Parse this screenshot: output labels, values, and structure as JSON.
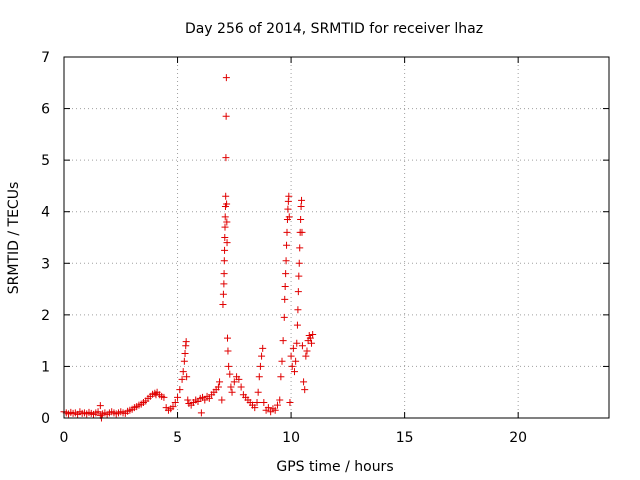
{
  "chart_data": {
    "type": "scatter",
    "title": "Day 256 of 2014, SRMTID for receiver lhaz",
    "xlabel": "GPS time / hours",
    "ylabel": "SRMTID / TECUs",
    "xlim": [
      0,
      24
    ],
    "ylim": [
      0,
      7
    ],
    "xticks": [
      0,
      5,
      10,
      15,
      20
    ],
    "yticks": [
      0,
      1,
      2,
      3,
      4,
      5,
      6,
      7
    ],
    "grid": true,
    "legend": "none",
    "marker": "+",
    "color": "#e00000",
    "series": [
      {
        "name": "SRMTID",
        "points": [
          [
            0.0,
            0.12
          ],
          [
            0.1,
            0.1
          ],
          [
            0.2,
            0.08
          ],
          [
            0.3,
            0.11
          ],
          [
            0.4,
            0.09
          ],
          [
            0.5,
            0.1
          ],
          [
            0.6,
            0.07
          ],
          [
            0.7,
            0.12
          ],
          [
            0.8,
            0.09
          ],
          [
            0.9,
            0.1
          ],
          [
            1.0,
            0.08
          ],
          [
            1.1,
            0.11
          ],
          [
            1.2,
            0.09
          ],
          [
            1.3,
            0.07
          ],
          [
            1.4,
            0.1
          ],
          [
            1.5,
            0.12
          ],
          [
            1.6,
            0.24
          ],
          [
            1.6,
            0.05
          ],
          [
            1.65,
            0.0
          ],
          [
            1.7,
            0.08
          ],
          [
            1.8,
            0.1
          ],
          [
            1.9,
            0.07
          ],
          [
            2.0,
            0.1
          ],
          [
            2.1,
            0.12
          ],
          [
            2.2,
            0.1
          ],
          [
            2.3,
            0.08
          ],
          [
            2.4,
            0.1
          ],
          [
            2.5,
            0.12
          ],
          [
            2.6,
            0.1
          ],
          [
            2.7,
            0.09
          ],
          [
            2.8,
            0.13
          ],
          [
            2.9,
            0.15
          ],
          [
            3.0,
            0.17
          ],
          [
            3.1,
            0.2
          ],
          [
            3.2,
            0.22
          ],
          [
            3.3,
            0.25
          ],
          [
            3.4,
            0.27
          ],
          [
            3.5,
            0.3
          ],
          [
            3.6,
            0.33
          ],
          [
            3.7,
            0.38
          ],
          [
            3.8,
            0.42
          ],
          [
            3.9,
            0.46
          ],
          [
            4.0,
            0.48
          ],
          [
            4.05,
            0.45
          ],
          [
            4.1,
            0.5
          ],
          [
            4.2,
            0.45
          ],
          [
            4.3,
            0.42
          ],
          [
            4.4,
            0.4
          ],
          [
            4.5,
            0.2
          ],
          [
            4.6,
            0.15
          ],
          [
            4.7,
            0.18
          ],
          [
            4.8,
            0.22
          ],
          [
            4.9,
            0.3
          ],
          [
            5.0,
            0.4
          ],
          [
            5.1,
            0.55
          ],
          [
            5.2,
            0.75
          ],
          [
            5.25,
            0.9
          ],
          [
            5.3,
            1.1
          ],
          [
            5.33,
            1.25
          ],
          [
            5.36,
            1.4
          ],
          [
            5.38,
            1.48
          ],
          [
            5.4,
            0.8
          ],
          [
            5.45,
            0.35
          ],
          [
            5.5,
            0.28
          ],
          [
            5.6,
            0.25
          ],
          [
            5.7,
            0.3
          ],
          [
            5.8,
            0.35
          ],
          [
            5.9,
            0.32
          ],
          [
            6.0,
            0.38
          ],
          [
            6.05,
            0.1
          ],
          [
            6.1,
            0.4
          ],
          [
            6.2,
            0.35
          ],
          [
            6.3,
            0.42
          ],
          [
            6.4,
            0.38
          ],
          [
            6.5,
            0.45
          ],
          [
            6.6,
            0.5
          ],
          [
            6.7,
            0.55
          ],
          [
            6.8,
            0.6
          ],
          [
            6.85,
            0.7
          ],
          [
            6.95,
            0.35
          ],
          [
            7.0,
            2.2
          ],
          [
            7.02,
            2.4
          ],
          [
            7.04,
            2.6
          ],
          [
            7.05,
            2.8
          ],
          [
            7.06,
            3.05
          ],
          [
            7.07,
            3.25
          ],
          [
            7.08,
            3.5
          ],
          [
            7.09,
            3.7
          ],
          [
            7.1,
            3.9
          ],
          [
            7.11,
            4.1
          ],
          [
            7.12,
            4.3
          ],
          [
            7.13,
            5.05
          ],
          [
            7.14,
            5.85
          ],
          [
            7.15,
            6.6
          ],
          [
            7.16,
            4.15
          ],
          [
            7.17,
            3.8
          ],
          [
            7.18,
            3.4
          ],
          [
            7.2,
            1.55
          ],
          [
            7.22,
            1.3
          ],
          [
            7.25,
            1.0
          ],
          [
            7.3,
            0.85
          ],
          [
            7.35,
            0.6
          ],
          [
            7.4,
            0.5
          ],
          [
            7.5,
            0.7
          ],
          [
            7.6,
            0.8
          ],
          [
            7.7,
            0.75
          ],
          [
            7.8,
            0.6
          ],
          [
            7.9,
            0.45
          ],
          [
            8.0,
            0.4
          ],
          [
            8.1,
            0.35
          ],
          [
            8.2,
            0.3
          ],
          [
            8.3,
            0.25
          ],
          [
            8.4,
            0.2
          ],
          [
            8.5,
            0.3
          ],
          [
            8.55,
            0.5
          ],
          [
            8.6,
            0.8
          ],
          [
            8.65,
            1.0
          ],
          [
            8.7,
            1.2
          ],
          [
            8.75,
            1.35
          ],
          [
            8.8,
            0.3
          ],
          [
            8.9,
            0.15
          ],
          [
            9.0,
            0.2
          ],
          [
            9.1,
            0.12
          ],
          [
            9.2,
            0.18
          ],
          [
            9.3,
            0.15
          ],
          [
            9.4,
            0.25
          ],
          [
            9.5,
            0.35
          ],
          [
            9.55,
            0.8
          ],
          [
            9.6,
            1.1
          ],
          [
            9.65,
            1.5
          ],
          [
            9.7,
            1.95
          ],
          [
            9.72,
            2.3
          ],
          [
            9.74,
            2.55
          ],
          [
            9.76,
            2.8
          ],
          [
            9.78,
            3.05
          ],
          [
            9.8,
            3.35
          ],
          [
            9.82,
            3.6
          ],
          [
            9.84,
            3.85
          ],
          [
            9.86,
            4.05
          ],
          [
            9.88,
            4.2
          ],
          [
            9.9,
            4.3
          ],
          [
            9.92,
            3.9
          ],
          [
            9.95,
            0.3
          ],
          [
            10.0,
            1.2
          ],
          [
            10.05,
            1.0
          ],
          [
            10.1,
            1.35
          ],
          [
            10.15,
            0.9
          ],
          [
            10.2,
            1.1
          ],
          [
            10.25,
            1.45
          ],
          [
            10.28,
            1.8
          ],
          [
            10.3,
            2.1
          ],
          [
            10.32,
            2.45
          ],
          [
            10.34,
            2.75
          ],
          [
            10.36,
            3.0
          ],
          [
            10.38,
            3.3
          ],
          [
            10.4,
            3.6
          ],
          [
            10.42,
            3.85
          ],
          [
            10.44,
            4.1
          ],
          [
            10.46,
            4.22
          ],
          [
            10.48,
            3.6
          ],
          [
            10.5,
            1.4
          ],
          [
            10.55,
            0.7
          ],
          [
            10.6,
            0.55
          ],
          [
            10.65,
            1.2
          ],
          [
            10.7,
            1.3
          ],
          [
            10.75,
            1.5
          ],
          [
            10.8,
            1.6
          ],
          [
            10.85,
            1.55
          ],
          [
            10.9,
            1.45
          ],
          [
            10.95,
            1.62
          ]
        ]
      }
    ]
  }
}
